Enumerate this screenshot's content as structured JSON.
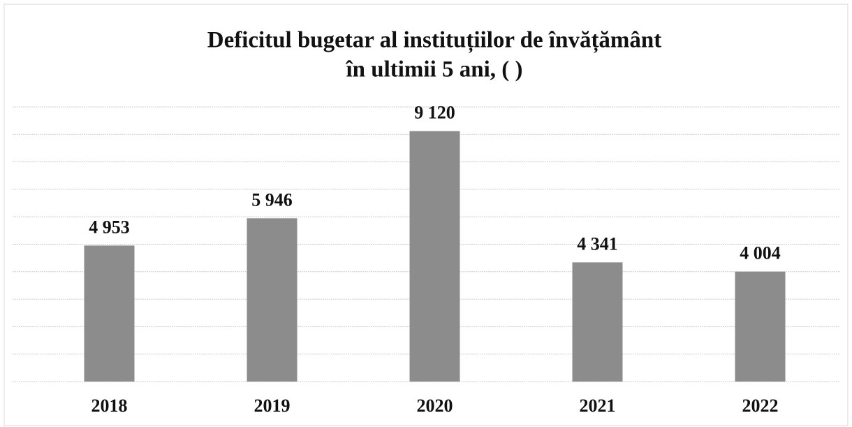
{
  "chart_data": {
    "type": "bar",
    "title": [
      "Deficitul bugetar al instituțiilor de învățământ",
      "în ultimii 5 ani, ( )"
    ],
    "categories": [
      "2018",
      "2019",
      "2020",
      "2021",
      "2022"
    ],
    "values": [
      4953,
      5946,
      9120,
      4341,
      4004
    ],
    "value_labels": [
      "4 953",
      "5 946",
      "9 120",
      "4 341",
      "4 004"
    ],
    "color": "#8c8c8c",
    "ylim": [
      0,
      10000
    ],
    "yticks": [
      0,
      1000,
      2000,
      3000,
      4000,
      5000,
      6000,
      7000,
      8000,
      9000,
      10000
    ],
    "grid": true
  }
}
